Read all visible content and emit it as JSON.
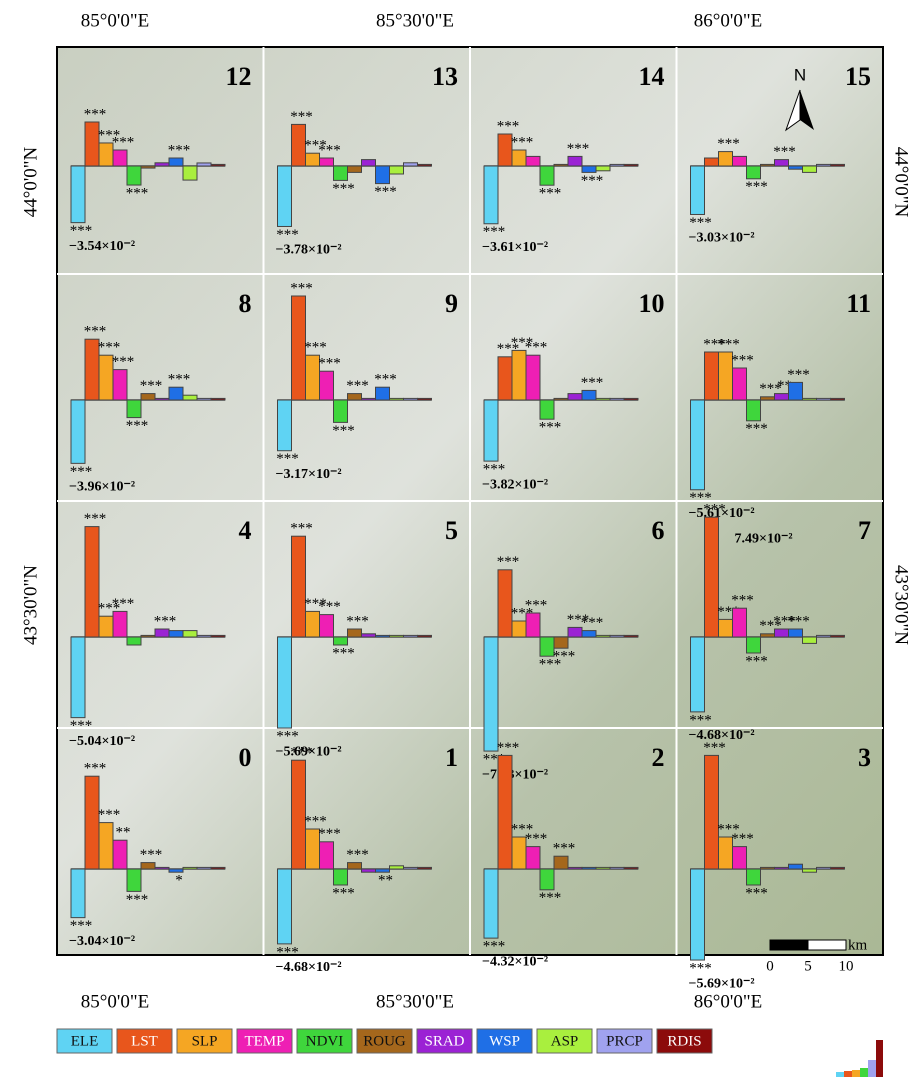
{
  "map": {
    "top_labels": [
      "85°0'0\"E",
      "85°30'0\"E",
      "86°0'0\"E"
    ],
    "bottom_labels": [
      "85°0'0\"E",
      "85°30'0\"E",
      "86°0'0\"E"
    ],
    "left_labels": [
      "44°0'0\"N",
      "43°30'0\"N"
    ],
    "right_labels": [
      "44°0'0\"N",
      "43°30'0\"N"
    ],
    "north": "N",
    "scale_unit": "km",
    "scale_ticks": [
      "0",
      "5",
      "10"
    ]
  },
  "legend": [
    {
      "name": "ELE",
      "color": "#5fd3f3"
    },
    {
      "name": "LST",
      "color": "#e8561c"
    },
    {
      "name": "SLP",
      "color": "#f5a623"
    },
    {
      "name": "TEMP",
      "color": "#ee1fb4"
    },
    {
      "name": "NDVI",
      "color": "#3fd63c"
    },
    {
      "name": "ROUG",
      "color": "#a5671c"
    },
    {
      "name": "SRAD",
      "color": "#9b22d4"
    },
    {
      "name": "WSP",
      "color": "#1f6fe6"
    },
    {
      "name": "ASP",
      "color": "#a9ef3e"
    },
    {
      "name": "PRCP",
      "color": "#a0a2ef"
    },
    {
      "name": "RDIS",
      "color": "#8c0b0b"
    }
  ],
  "chart_data": [
    {
      "type": "bar",
      "title": "12",
      "values": [
        -0.0354,
        0.0275,
        0.0144,
        0.01,
        -0.0119,
        -0.0013,
        0.002,
        0.005,
        -0.0088,
        0.0019,
        0.001
      ],
      "value_labels": [
        "−3.54×10⁻²",
        null,
        null,
        null,
        null,
        null,
        null,
        null,
        null,
        null,
        null
      ],
      "stars": [
        "***",
        "***",
        "***",
        "***",
        "***",
        null,
        null,
        "***",
        null,
        null,
        null
      ]
    },
    {
      "type": "bar",
      "title": "13",
      "values": [
        -0.0378,
        0.026,
        0.008,
        0.005,
        -0.009,
        -0.004,
        0.004,
        -0.011,
        -0.005,
        0.002,
        0.001
      ],
      "value_labels": [
        "−3.78×10⁻²",
        null,
        null,
        null,
        null,
        null,
        null,
        null,
        null,
        null,
        null
      ],
      "stars": [
        "***",
        "***",
        "***",
        "***",
        "***",
        null,
        null,
        "***",
        null,
        null,
        null
      ]
    },
    {
      "type": "bar",
      "title": "14",
      "values": [
        -0.0361,
        0.02,
        0.01,
        0.006,
        -0.012,
        0.001,
        0.006,
        -0.004,
        -0.003,
        0.001,
        0.001
      ],
      "value_labels": [
        "−3.61×10⁻²",
        null,
        null,
        null,
        null,
        null,
        null,
        null,
        null,
        null,
        null
      ],
      "stars": [
        "***",
        "***",
        "***",
        null,
        "***",
        null,
        "***",
        "***",
        null,
        null,
        null
      ]
    },
    {
      "type": "bar",
      "title": "15",
      "values": [
        -0.0303,
        0.005,
        0.009,
        0.006,
        -0.008,
        0.001,
        0.004,
        -0.002,
        -0.004,
        0.001,
        0.001
      ],
      "value_labels": [
        "−3.03×10⁻²",
        null,
        null,
        null,
        null,
        null,
        null,
        null,
        null,
        null,
        null
      ],
      "stars": [
        "***",
        null,
        "***",
        null,
        "***",
        null,
        "***",
        null,
        null,
        null,
        null
      ]
    },
    {
      "type": "bar",
      "title": "8",
      "values": [
        -0.0396,
        0.038,
        0.028,
        0.019,
        -0.011,
        0.004,
        0.001,
        0.008,
        0.003,
        0.001,
        0.001
      ],
      "value_labels": [
        "−3.96×10⁻²",
        null,
        null,
        null,
        null,
        null,
        null,
        null,
        null,
        null,
        null
      ],
      "stars": [
        "***",
        "***",
        "***",
        "***",
        "***",
        "***",
        null,
        "***",
        null,
        null,
        null
      ]
    },
    {
      "type": "bar",
      "title": "9",
      "values": [
        -0.0317,
        0.065,
        0.028,
        0.018,
        -0.014,
        0.004,
        0.001,
        0.008,
        0.001,
        0.001,
        0.001
      ],
      "value_labels": [
        "−3.17×10⁻²",
        null,
        null,
        null,
        null,
        null,
        null,
        null,
        null,
        null,
        null
      ],
      "stars": [
        "***",
        "***",
        "***",
        "***",
        "***",
        "***",
        null,
        "***",
        null,
        null,
        null
      ]
    },
    {
      "type": "bar",
      "title": "10",
      "values": [
        -0.0382,
        0.027,
        0.031,
        0.028,
        -0.012,
        0.001,
        0.004,
        0.006,
        0.001,
        0.001,
        0.001
      ],
      "value_labels": [
        "−3.82×10⁻²",
        null,
        null,
        null,
        null,
        null,
        null,
        null,
        null,
        null,
        null
      ],
      "stars": [
        "***",
        "***",
        "***",
        "***",
        "***",
        null,
        null,
        "***",
        null,
        null,
        null
      ]
    },
    {
      "type": "bar",
      "title": "11",
      "values": [
        -0.0561,
        0.03,
        0.03,
        0.02,
        -0.013,
        0.002,
        0.004,
        0.011,
        0.001,
        0.001,
        0.001
      ],
      "value_labels": [
        "−5.61×10⁻²",
        null,
        null,
        null,
        null,
        null,
        null,
        null,
        null,
        null,
        null
      ],
      "stars": [
        "***",
        "***",
        "***",
        "***",
        "***",
        "***",
        "**",
        "***",
        null,
        null,
        null
      ]
    },
    {
      "type": "bar",
      "title": "4",
      "values": [
        -0.0504,
        0.069,
        0.013,
        0.016,
        -0.005,
        0.001,
        0.005,
        0.004,
        0.004,
        0.001,
        0.001
      ],
      "value_labels": [
        "−5.04×10⁻²",
        null,
        null,
        null,
        null,
        null,
        null,
        null,
        null,
        null,
        null
      ],
      "stars": [
        "***",
        "***",
        "***",
        "***",
        null,
        null,
        "***",
        null,
        null,
        null,
        null
      ]
    },
    {
      "type": "bar",
      "title": "5",
      "values": [
        -0.0569,
        0.063,
        0.016,
        0.014,
        -0.005,
        0.005,
        0.002,
        0.001,
        0.001,
        0.001,
        0.001
      ],
      "value_labels": [
        "−5.69×10⁻²",
        null,
        null,
        null,
        null,
        null,
        null,
        null,
        null,
        null,
        null
      ],
      "stars": [
        "***",
        "***",
        "***",
        "***",
        "***",
        "***",
        null,
        null,
        null,
        null,
        null
      ]
    },
    {
      "type": "bar",
      "title": "6",
      "values": [
        -0.0713,
        0.042,
        0.01,
        0.015,
        -0.012,
        -0.007,
        0.006,
        0.004,
        0.001,
        0.001,
        0.001
      ],
      "value_labels": [
        "−7.13×10⁻²",
        null,
        null,
        null,
        null,
        null,
        null,
        null,
        null,
        null,
        null
      ],
      "stars": [
        "***",
        "***",
        "***",
        "***",
        "***",
        "***",
        "***",
        "***",
        null,
        null,
        null
      ]
    },
    {
      "type": "bar",
      "title": "7",
      "values": [
        -0.0468,
        0.0749,
        0.011,
        0.018,
        -0.01,
        0.002,
        0.005,
        0.005,
        -0.004,
        0.001,
        0.001
      ],
      "value_labels": [
        "−4.68×10⁻²",
        "7.49×10⁻²",
        null,
        null,
        null,
        null,
        null,
        null,
        null,
        null,
        null
      ],
      "stars": [
        "***",
        "***",
        "***",
        "***",
        "***",
        "***",
        "***",
        "***",
        null,
        null,
        null
      ]
    },
    {
      "type": "bar",
      "title": "0",
      "values": [
        -0.0304,
        0.058,
        0.029,
        0.018,
        -0.014,
        0.004,
        0.001,
        -0.002,
        0.001,
        0.001,
        0.001
      ],
      "value_labels": [
        "−3.04×10⁻²",
        null,
        null,
        null,
        null,
        null,
        null,
        null,
        null,
        null,
        null
      ],
      "stars": [
        "***",
        "***",
        "***",
        "**",
        "***",
        "***",
        null,
        "*",
        null,
        null,
        null
      ]
    },
    {
      "type": "bar",
      "title": "1",
      "values": [
        -0.0468,
        0.068,
        0.025,
        0.017,
        -0.01,
        0.004,
        -0.002,
        -0.002,
        0.002,
        0.001,
        0.001
      ],
      "value_labels": [
        "−4.68×10⁻²",
        null,
        null,
        null,
        null,
        null,
        null,
        null,
        null,
        null,
        null
      ],
      "stars": [
        "***",
        "***",
        "***",
        "***",
        "***",
        "***",
        null,
        "**",
        null,
        null,
        null
      ]
    },
    {
      "type": "bar",
      "title": "2",
      "values": [
        -0.0432,
        0.071,
        0.02,
        0.014,
        -0.013,
        0.008,
        0.001,
        0.001,
        0.001,
        0.001,
        0.001
      ],
      "value_labels": [
        "−4.32×10⁻²",
        null,
        null,
        null,
        null,
        null,
        null,
        null,
        null,
        null,
        null
      ],
      "stars": [
        "***",
        "***",
        "***",
        "***",
        "***",
        "***",
        null,
        null,
        null,
        null,
        null
      ]
    },
    {
      "type": "bar",
      "title": "3",
      "values": [
        -0.0569,
        0.071,
        0.02,
        0.014,
        -0.01,
        0.001,
        0.001,
        0.003,
        -0.002,
        0.001,
        0.001
      ],
      "value_labels": [
        "−5.69×10⁻²",
        null,
        null,
        null,
        null,
        null,
        null,
        null,
        null,
        null,
        null
      ],
      "stars": [
        "***",
        "***",
        "***",
        "***",
        "***",
        null,
        null,
        null,
        null,
        null,
        null
      ]
    }
  ]
}
